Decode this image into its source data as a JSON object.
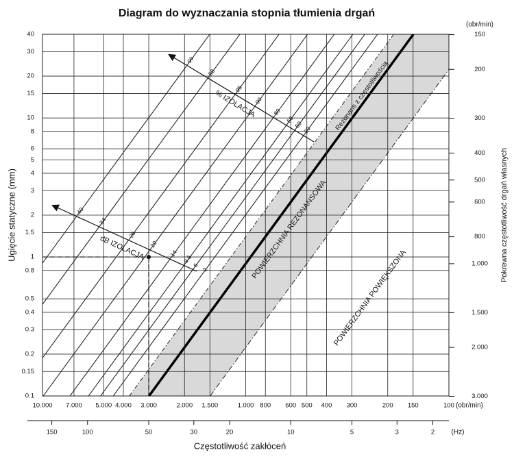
{
  "chart_data": {
    "type": "nomogram",
    "title": "Diagram do wyznaczania stopnia tłumienia drgań",
    "x_label": "Częstotliwość zakłóceń",
    "x_unit": "(obr/min)",
    "xlim": [
      10000,
      100
    ],
    "xticks": [
      {
        "value": 10000,
        "label": "10.000"
      },
      {
        "value": 7000,
        "label": "7.000"
      },
      {
        "value": 5000,
        "label": "5.000"
      },
      {
        "value": 4000,
        "label": "4.000"
      },
      {
        "value": 3000,
        "label": "3.000"
      },
      {
        "value": 2000,
        "label": "2.000"
      },
      {
        "value": 1500,
        "label": "1.500"
      },
      {
        "value": 1000,
        "label": "1.000"
      },
      800,
      600,
      500,
      400,
      300,
      200,
      150,
      100
    ],
    "x2_unit": "(Hz)",
    "x2ticks": [
      150,
      100,
      50,
      30,
      20,
      10,
      5,
      3,
      2
    ],
    "y_label": "Ugięcie statyczne (mm)",
    "ylim": [
      0.1,
      40
    ],
    "yticks": [
      40,
      30,
      20,
      15,
      10,
      8,
      6,
      5,
      4,
      3,
      2,
      1.5,
      1,
      0.8,
      0.5,
      0.4,
      0.3,
      0.2,
      0.15,
      0.1
    ],
    "y2_label": "Pokrewna częstotliwość drgań własnych",
    "y2_unit": "(obr/min)",
    "y2ticks": [
      150,
      200,
      300,
      400,
      500,
      600,
      800,
      {
        "value": 1000,
        "label": "1.000"
      },
      {
        "value": 1500,
        "label": "1.500"
      },
      {
        "value": 2000,
        "label": "2.000"
      },
      {
        "value": 3000,
        "label": "3.000"
      }
    ],
    "log_scale": true,
    "grid": true,
    "isolation": {
      "label": "% IZOLACJA",
      "values": [
        99,
        98,
        95,
        90,
        80,
        66,
        50,
        20
      ]
    },
    "db": {
      "label": "dB IZOLACJA",
      "values": [
        40,
        34,
        26,
        20,
        14,
        9.5,
        6,
        2
      ]
    },
    "resonance_label": "Rezonans z częstotliwością",
    "resonance_area": "POWIERZCHNIA REZONANSOWA",
    "enlarged_area": "POWIERZCHNIA POWIĘKSZONA"
  }
}
